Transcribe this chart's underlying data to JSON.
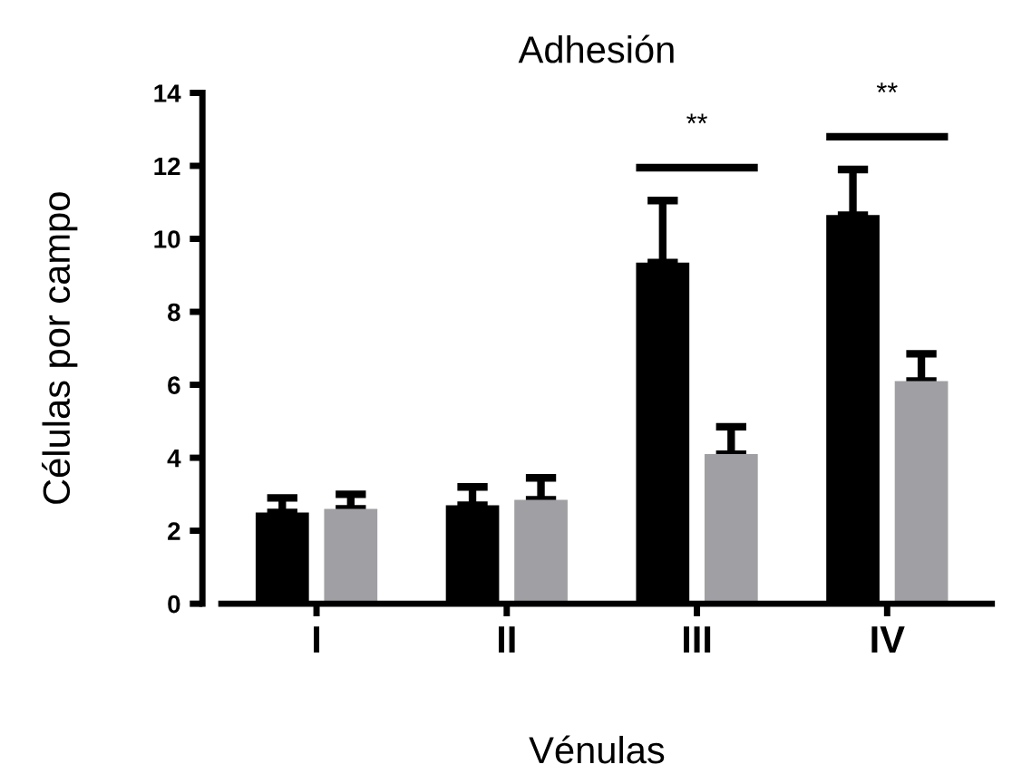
{
  "chart_data": {
    "type": "bar",
    "title": "Adhesión",
    "xlabel": "Vénulas",
    "ylabel": "Células por campo",
    "categories": [
      "I",
      "II",
      "III",
      "IV"
    ],
    "series": [
      {
        "color": "#000000",
        "values": [
          2.5,
          2.7,
          9.35,
          10.65
        ],
        "errors": [
          [
            2.5,
            2.9
          ],
          [
            2.7,
            3.2
          ],
          [
            9.35,
            11.05
          ],
          [
            10.65,
            11.9
          ]
        ]
      },
      {
        "color": "#a0a0a4",
        "values": [
          2.6,
          2.85,
          4.1,
          6.1
        ],
        "errors": [
          [
            2.6,
            3.0
          ],
          [
            2.85,
            3.45
          ],
          [
            4.1,
            4.85
          ],
          [
            6.1,
            6.85
          ]
        ]
      }
    ],
    "ylim": [
      0,
      14
    ],
    "yticks": [
      0,
      2,
      4,
      6,
      8,
      10,
      12,
      14
    ],
    "grid": false,
    "legend": false,
    "annotations": [
      "**",
      "**"
    ]
  }
}
